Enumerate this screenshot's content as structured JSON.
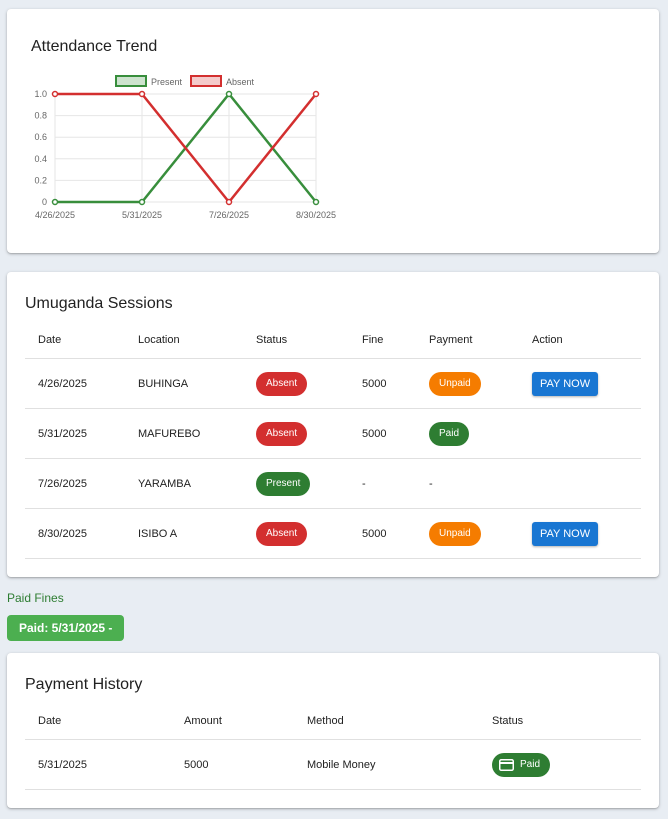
{
  "chart": {
    "title": "Attendance Trend"
  },
  "chart_data": {
    "type": "line",
    "x": [
      "4/26/2025",
      "5/31/2025",
      "7/26/2025",
      "8/30/2025"
    ],
    "series": [
      {
        "name": "Present",
        "values": [
          0,
          0,
          1,
          0
        ],
        "color": "#388e3c"
      },
      {
        "name": "Absent",
        "values": [
          1,
          1,
          0,
          1
        ],
        "color": "#d32f2f"
      }
    ],
    "yticks": [
      "1.0",
      "0.8",
      "0.6",
      "0.4",
      "0.2",
      "0"
    ],
    "ylim": [
      0,
      1
    ],
    "grid": true,
    "legend": "top"
  },
  "sessions": {
    "title": "Umuganda Sessions",
    "headers": [
      "Date",
      "Location",
      "Status",
      "Fine",
      "Payment",
      "Action"
    ],
    "rows": [
      {
        "date": "4/26/2025",
        "location": "BUHINGA",
        "status": "Absent",
        "fine": "5000",
        "payment": "Unpaid",
        "action": "PAY NOW"
      },
      {
        "date": "5/31/2025",
        "location": "MAFUREBO",
        "status": "Absent",
        "fine": "5000",
        "payment": "Paid",
        "action": ""
      },
      {
        "date": "7/26/2025",
        "location": "YARAMBA",
        "status": "Present",
        "fine": "-",
        "payment": "-",
        "action": ""
      },
      {
        "date": "8/30/2025",
        "location": "ISIBO A",
        "status": "Absent",
        "fine": "5000",
        "payment": "Unpaid",
        "action": "PAY NOW"
      }
    ]
  },
  "paid_fines": {
    "label": "Paid Fines",
    "chip": "Paid: 5/31/2025 -"
  },
  "history": {
    "title": "Payment History",
    "headers": [
      "Date",
      "Amount",
      "Method",
      "Status"
    ],
    "rows": [
      {
        "date": "5/31/2025",
        "amount": "5000",
        "method": "Mobile Money",
        "status": "Paid",
        "status_icon": "credit-card-icon"
      }
    ]
  }
}
